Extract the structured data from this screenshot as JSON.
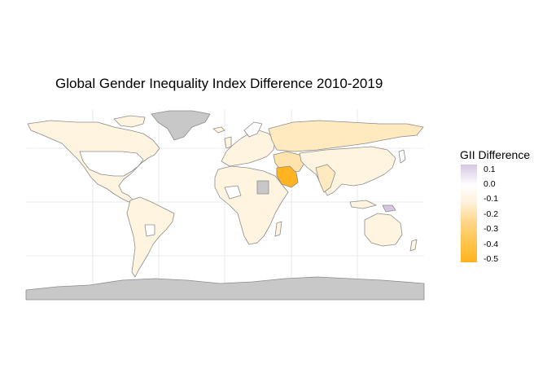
{
  "title": "Global Gender Inequality Index Difference 2010-2019",
  "legend": {
    "title": "GII Difference",
    "ticks": [
      {
        "label": "0.1",
        "value": 0.1
      },
      {
        "label": "0.0",
        "value": 0.0
      },
      {
        "label": "-0.1",
        "value": -0.1
      },
      {
        "label": "-0.2",
        "value": -0.2
      },
      {
        "label": "-0.3",
        "value": -0.3
      },
      {
        "label": "-0.4",
        "value": -0.4
      },
      {
        "label": "-0.5",
        "value": -0.5
      }
    ],
    "range": [
      -0.52,
      0.13
    ],
    "colors": {
      "max": "#d7c6e2",
      "zero": "#ffffff",
      "min": "#ffb320",
      "missing": "#c8c8c8"
    }
  },
  "map": {
    "projection": "equirectangular",
    "grid": true,
    "border_color": "#8c8c8c",
    "land_color": "#fff4e0",
    "ocean_color": "#ffffff"
  }
}
